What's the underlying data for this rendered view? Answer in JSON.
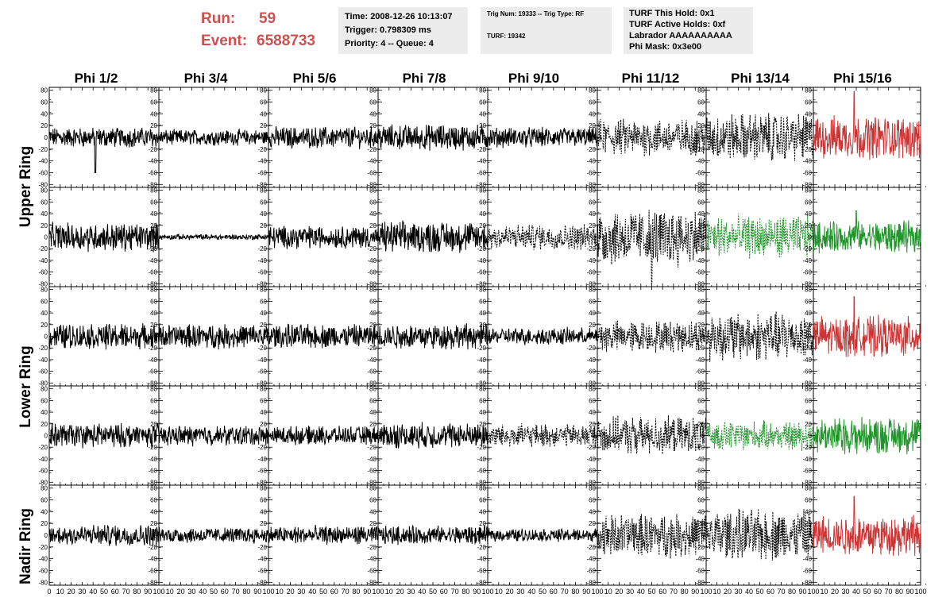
{
  "header": {
    "run_label": "Run:",
    "run_value": "59",
    "event_label": "Event:",
    "event_value": "6588733",
    "box1": [
      "Time: 2008-12-26 10:13:07",
      "Trigger: 0.798309 ms",
      "Priority: 4 -- Queue: 4"
    ],
    "box2": [
      "Trig Num: 19333 -- Trig Type: RF",
      "TURF: 19342"
    ],
    "box3": [
      "TURF This Hold: 0x1",
      "TURF Active Holds: 0xf",
      "Labrador AAAAAAAAAA",
      "Phi Mask: 0x3e00"
    ]
  },
  "columns": [
    "Phi 1/2",
    "Phi 3/4",
    "Phi 5/6",
    "Phi 7/8",
    "Phi 9/10",
    "Phi 11/12",
    "Phi 13/14",
    "Phi 15/16"
  ],
  "row_groups": [
    "Upper Ring",
    "Lower Ring",
    "Nadir Ring"
  ],
  "colors": {
    "red": "#cc3333",
    "green": "#22942c",
    "black": "#000000",
    "header_red": "#d05050",
    "box_bg": "#ececec"
  },
  "chart_data": {
    "type": "line",
    "panel_grid": {
      "rows": 5,
      "cols": 8
    },
    "x_ticks": [
      0,
      10,
      20,
      30,
      40,
      50,
      60,
      70,
      80,
      90,
      100
    ],
    "x_tick_labels": [
      "0",
      "10",
      "20",
      "30",
      "40",
      "50",
      "60",
      "70",
      "80",
      "90",
      "100"
    ],
    "xlim": [
      0,
      100
    ],
    "y_ticks": [
      -80,
      -60,
      -40,
      -20,
      0,
      20,
      40,
      60,
      80
    ],
    "y_tick_labels": [
      "-80",
      "-60",
      "-40",
      "-20",
      "0",
      "20",
      "40",
      "60",
      "80"
    ],
    "ylim": [
      -85,
      85
    ],
    "waveform_points_per_panel": 260,
    "panels": [
      [
        {
          "style": "solid",
          "color": "black",
          "amplitude": 14,
          "spike_x": 42,
          "spike_y": -60
        },
        {
          "style": "solid",
          "color": "black",
          "amplitude": 11
        },
        {
          "style": "solid",
          "color": "black",
          "amplitude": 15
        },
        {
          "style": "solid",
          "color": "black",
          "amplitude": 18
        },
        {
          "style": "solid",
          "color": "black",
          "amplitude": 14
        },
        {
          "style": "dashed",
          "color": "black",
          "amplitude": 26
        },
        {
          "style": "dashed",
          "color": "black",
          "amplitude": 34
        },
        {
          "style": "solid",
          "color": "red",
          "amplitude": 30,
          "spike_x": 38,
          "spike_y": 78
        }
      ],
      [
        {
          "style": "solid",
          "color": "black",
          "amplitude": 20
        },
        {
          "style": "solid",
          "color": "black",
          "amplitude": 4
        },
        {
          "style": "solid",
          "color": "black",
          "amplitude": 16
        },
        {
          "style": "solid",
          "color": "black",
          "amplitude": 22
        },
        {
          "style": "dashed",
          "color": "black",
          "amplitude": 18
        },
        {
          "style": "dashed",
          "color": "black",
          "amplitude": 40,
          "spike_x": 50,
          "spike_y": -80
        },
        {
          "style": "dashed",
          "color": "green",
          "amplitude": 30
        },
        {
          "style": "solid",
          "color": "green",
          "amplitude": 22,
          "spike_x": 40,
          "spike_y": 45
        }
      ],
      [
        {
          "style": "solid",
          "color": "black",
          "amplitude": 18
        },
        {
          "style": "solid",
          "color": "black",
          "amplitude": 17
        },
        {
          "style": "solid",
          "color": "black",
          "amplitude": 17
        },
        {
          "style": "solid",
          "color": "black",
          "amplitude": 18
        },
        {
          "style": "solid",
          "color": "black",
          "amplitude": 12
        },
        {
          "style": "dashed",
          "color": "black",
          "amplitude": 22
        },
        {
          "style": "dashed",
          "color": "black",
          "amplitude": 34
        },
        {
          "style": "solid",
          "color": "red",
          "amplitude": 28,
          "spike_x": 38,
          "spike_y": 68
        }
      ],
      [
        {
          "style": "solid",
          "color": "black",
          "amplitude": 17
        },
        {
          "style": "solid",
          "color": "black",
          "amplitude": 14
        },
        {
          "style": "solid",
          "color": "black",
          "amplitude": 13
        },
        {
          "style": "solid",
          "color": "black",
          "amplitude": 18
        },
        {
          "style": "dashed",
          "color": "black",
          "amplitude": 16
        },
        {
          "style": "dashed",
          "color": "black",
          "amplitude": 26
        },
        {
          "style": "dashed",
          "color": "green",
          "amplitude": 20
        },
        {
          "style": "solid",
          "color": "green",
          "amplitude": 26
        }
      ],
      [
        {
          "style": "solid",
          "color": "black",
          "amplitude": 15
        },
        {
          "style": "solid",
          "color": "black",
          "amplitude": 11
        },
        {
          "style": "solid",
          "color": "black",
          "amplitude": 13
        },
        {
          "style": "solid",
          "color": "black",
          "amplitude": 13
        },
        {
          "style": "solid",
          "color": "black",
          "amplitude": 9
        },
        {
          "style": "dashed",
          "color": "black",
          "amplitude": 30
        },
        {
          "style": "dashed",
          "color": "black",
          "amplitude": 36
        },
        {
          "style": "solid",
          "color": "red",
          "amplitude": 28,
          "spike_x": 38,
          "spike_y": 66
        }
      ]
    ]
  }
}
